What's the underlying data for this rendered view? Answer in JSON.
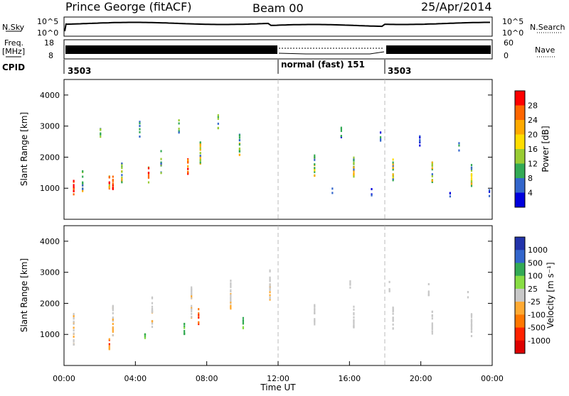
{
  "header": {
    "title": "Prince George (fitACF)",
    "beam": "Beam 00",
    "date": "25/Apr/2014"
  },
  "noise_panel": {
    "left_label": "N.Sky",
    "right_label": "N.Search",
    "left_ticks": [
      "10^5",
      "10^0"
    ],
    "right_ticks": [
      "10^5",
      "10^0"
    ]
  },
  "freq_panel": {
    "left_label_1": "Freq.",
    "left_label_2": "[MHz]",
    "left_ticks": [
      "18",
      "8"
    ],
    "right_label": "Nave",
    "right_ticks": [
      "60",
      "0"
    ]
  },
  "cpid": {
    "label": "CPID",
    "segments": [
      {
        "text": "3503"
      },
      {
        "text": "normal (fast) 151"
      },
      {
        "text": "3503"
      }
    ]
  },
  "chart_data": [
    {
      "type": "heatmap",
      "name": "power",
      "ylabel": "Slant Range [km]",
      "xlabel": "Time UT",
      "ylim": [
        0,
        4500
      ],
      "yticks": [
        "1000",
        "2000",
        "3000",
        "4000"
      ],
      "xticks": [
        "00:00",
        "04:00",
        "08:00",
        "12:00",
        "16:00",
        "20:00",
        "00:00"
      ],
      "colorbar": {
        "label": "Power [dB]",
        "ticks": [
          "28",
          "24",
          "20",
          "16",
          "12",
          "8",
          "4"
        ],
        "colors": [
          "#ff0000",
          "#ff6600",
          "#ffaa00",
          "#ffdd00",
          "#99cc33",
          "#33aa55",
          "#3366cc",
          "#0000dd"
        ]
      }
    },
    {
      "type": "heatmap",
      "name": "velocity",
      "ylabel": "Slant Range [km]",
      "xlabel": "Time UT",
      "ylim": [
        0,
        4500
      ],
      "yticks": [
        "1000",
        "2000",
        "3000",
        "4000"
      ],
      "xticks": [
        "00:00",
        "04:00",
        "08:00",
        "12:00",
        "16:00",
        "20:00",
        "00:00"
      ],
      "colorbar": {
        "label": "Velocity [m s⁻¹]",
        "ticks": [
          "1000",
          "500",
          "100",
          "25",
          "-25",
          "-100",
          "-500",
          "-1000"
        ],
        "colors": [
          "#2233aa",
          "#3366cc",
          "#33aa55",
          "#88dd44",
          "#c8c8c8",
          "#ffaa33",
          "#ff7700",
          "#ff2200",
          "#dd0000"
        ]
      }
    }
  ]
}
